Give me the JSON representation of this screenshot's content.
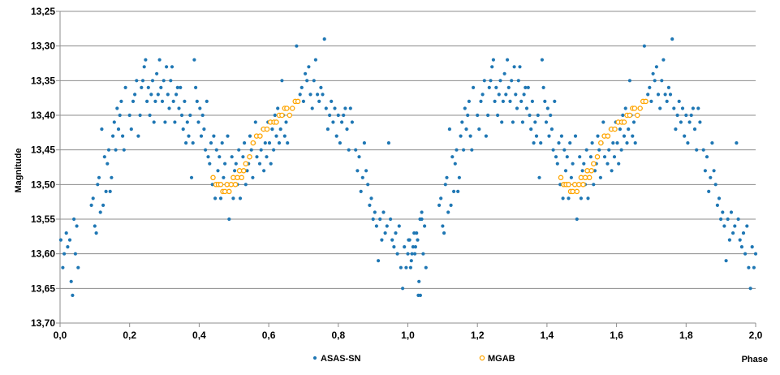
{
  "chart_data": {
    "type": "scatter",
    "xlabel": "Phase",
    "ylabel": "Magnitude",
    "xlim": [
      0,
      2
    ],
    "ylim": [
      13.25,
      13.7
    ],
    "y_inverted": true,
    "grid": "horizontal",
    "legend_position": "bottom",
    "x_ticks": [
      "0,0",
      "0,2",
      "0,4",
      "0,6",
      "0,8",
      "1,0",
      "1,2",
      "1,4",
      "1,6",
      "1,8",
      "2,0"
    ],
    "y_ticks": [
      "13,25",
      "13,30",
      "13,35",
      "13,40",
      "13,45",
      "13,50",
      "13,55",
      "13,60",
      "13,65",
      "13,70"
    ],
    "series": [
      {
        "name": "ASAS-SN",
        "color": "#1f77b4",
        "marker": "dot",
        "points": [
          [
            0.002,
            13.58
          ],
          [
            0.008,
            13.62
          ],
          [
            0.012,
            13.6
          ],
          [
            0.018,
            13.57
          ],
          [
            0.022,
            13.59
          ],
          [
            0.028,
            13.58
          ],
          [
            0.032,
            13.64
          ],
          [
            0.036,
            13.66
          ],
          [
            0.04,
            13.55
          ],
          [
            0.044,
            13.6
          ],
          [
            0.048,
            13.56
          ],
          [
            0.052,
            13.62
          ],
          [
            0.09,
            13.53
          ],
          [
            0.095,
            13.52
          ],
          [
            0.1,
            13.56
          ],
          [
            0.104,
            13.57
          ],
          [
            0.108,
            13.5
          ],
          [
            0.112,
            13.49
          ],
          [
            0.116,
            13.54
          ],
          [
            0.12,
            13.42
          ],
          [
            0.124,
            13.53
          ],
          [
            0.128,
            13.46
          ],
          [
            0.132,
            13.51
          ],
          [
            0.136,
            13.47
          ],
          [
            0.14,
            13.45
          ],
          [
            0.144,
            13.51
          ],
          [
            0.148,
            13.49
          ],
          [
            0.152,
            13.43
          ],
          [
            0.156,
            13.41
          ],
          [
            0.16,
            13.45
          ],
          [
            0.164,
            13.39
          ],
          [
            0.168,
            13.42
          ],
          [
            0.172,
            13.4
          ],
          [
            0.176,
            13.38
          ],
          [
            0.18,
            13.43
          ],
          [
            0.184,
            13.45
          ],
          [
            0.188,
            13.36
          ],
          [
            0.2,
            13.4
          ],
          [
            0.205,
            13.42
          ],
          [
            0.21,
            13.38
          ],
          [
            0.215,
            13.37
          ],
          [
            0.22,
            13.35
          ],
          [
            0.225,
            13.43
          ],
          [
            0.23,
            13.4
          ],
          [
            0.234,
            13.36
          ],
          [
            0.238,
            13.35
          ],
          [
            0.242,
            13.33
          ],
          [
            0.246,
            13.32
          ],
          [
            0.25,
            13.38
          ],
          [
            0.254,
            13.36
          ],
          [
            0.258,
            13.4
          ],
          [
            0.262,
            13.37
          ],
          [
            0.266,
            13.35
          ],
          [
            0.27,
            13.41
          ],
          [
            0.274,
            13.38
          ],
          [
            0.278,
            13.34
          ],
          [
            0.282,
            13.37
          ],
          [
            0.286,
            13.32
          ],
          [
            0.29,
            13.36
          ],
          [
            0.294,
            13.38
          ],
          [
            0.298,
            13.35
          ],
          [
            0.302,
            13.41
          ],
          [
            0.306,
            13.33
          ],
          [
            0.31,
            13.37
          ],
          [
            0.314,
            13.39
          ],
          [
            0.318,
            13.35
          ],
          [
            0.322,
            13.33
          ],
          [
            0.326,
            13.38
          ],
          [
            0.33,
            13.41
          ],
          [
            0.334,
            13.37
          ],
          [
            0.338,
            13.36
          ],
          [
            0.342,
            13.39
          ],
          [
            0.346,
            13.36
          ],
          [
            0.35,
            13.4
          ],
          [
            0.354,
            13.42
          ],
          [
            0.358,
            13.38
          ],
          [
            0.362,
            13.44
          ],
          [
            0.366,
            13.41
          ],
          [
            0.37,
            13.43
          ],
          [
            0.374,
            13.4
          ],
          [
            0.378,
            13.49
          ],
          [
            0.382,
            13.44
          ],
          [
            0.386,
            13.32
          ],
          [
            0.39,
            13.36
          ],
          [
            0.394,
            13.38
          ],
          [
            0.398,
            13.41
          ],
          [
            0.402,
            13.39
          ],
          [
            0.406,
            13.43
          ],
          [
            0.41,
            13.4
          ],
          [
            0.414,
            13.42
          ],
          [
            0.418,
            13.45
          ],
          [
            0.422,
            13.38
          ],
          [
            0.426,
            13.46
          ],
          [
            0.43,
            13.47
          ],
          [
            0.434,
            13.44
          ],
          [
            0.438,
            13.5
          ],
          [
            0.442,
            13.43
          ],
          [
            0.446,
            13.52
          ],
          [
            0.45,
            13.45
          ],
          [
            0.454,
            13.48
          ],
          [
            0.458,
            13.46
          ],
          [
            0.462,
            13.52
          ],
          [
            0.466,
            13.44
          ],
          [
            0.47,
            13.49
          ],
          [
            0.474,
            13.47
          ],
          [
            0.478,
            13.51
          ],
          [
            0.482,
            13.43
          ],
          [
            0.486,
            13.55
          ],
          [
            0.49,
            13.5
          ],
          [
            0.494,
            13.46
          ],
          [
            0.498,
            13.52
          ],
          [
            0.502,
            13.48
          ],
          [
            0.506,
            13.47
          ],
          [
            0.51,
            13.5
          ],
          [
            0.514,
            13.45
          ],
          [
            0.518,
            13.52
          ],
          [
            0.522,
            13.49
          ],
          [
            0.526,
            13.46
          ],
          [
            0.53,
            13.44
          ],
          [
            0.534,
            13.5
          ],
          [
            0.538,
            13.48
          ],
          [
            0.542,
            13.47
          ],
          [
            0.546,
            13.43
          ],
          [
            0.55,
            13.45
          ],
          [
            0.554,
            13.49
          ],
          [
            0.558,
            13.44
          ],
          [
            0.562,
            13.41
          ],
          [
            0.566,
            13.46
          ],
          [
            0.57,
            13.43
          ],
          [
            0.574,
            13.47
          ],
          [
            0.578,
            13.45
          ],
          [
            0.582,
            13.42
          ],
          [
            0.586,
            13.48
          ],
          [
            0.59,
            13.44
          ],
          [
            0.594,
            13.46
          ],
          [
            0.598,
            13.41
          ],
          [
            0.602,
            13.44
          ],
          [
            0.606,
            13.47
          ],
          [
            0.61,
            13.42
          ],
          [
            0.614,
            13.45
          ],
          [
            0.618,
            13.4
          ],
          [
            0.622,
            13.43
          ],
          [
            0.626,
            13.39
          ],
          [
            0.63,
            13.44
          ],
          [
            0.634,
            13.42
          ],
          [
            0.638,
            13.35
          ],
          [
            0.642,
            13.4
          ],
          [
            0.646,
            13.43
          ],
          [
            0.65,
            13.41
          ],
          [
            0.654,
            13.44
          ],
          [
            0.68,
            13.3
          ],
          [
            0.69,
            13.37
          ],
          [
            0.695,
            13.36
          ],
          [
            0.7,
            13.38
          ],
          [
            0.705,
            13.34
          ],
          [
            0.71,
            13.35
          ],
          [
            0.715,
            13.33
          ],
          [
            0.72,
            13.37
          ],
          [
            0.725,
            13.39
          ],
          [
            0.73,
            13.35
          ],
          [
            0.735,
            13.32
          ],
          [
            0.74,
            13.37
          ],
          [
            0.745,
            13.38
          ],
          [
            0.75,
            13.36
          ],
          [
            0.755,
            13.37
          ],
          [
            0.76,
            13.29
          ],
          [
            0.765,
            13.39
          ],
          [
            0.77,
            13.42
          ],
          [
            0.775,
            13.4
          ],
          [
            0.78,
            13.38
          ],
          [
            0.785,
            13.41
          ],
          [
            0.79,
            13.39
          ],
          [
            0.795,
            13.43
          ],
          [
            0.8,
            13.4
          ],
          [
            0.805,
            13.44
          ],
          [
            0.81,
            13.41
          ],
          [
            0.815,
            13.4
          ],
          [
            0.82,
            13.39
          ],
          [
            0.825,
            13.42
          ],
          [
            0.83,
            13.45
          ],
          [
            0.835,
            13.39
          ],
          [
            0.84,
            13.41
          ],
          [
            0.85,
            13.45
          ],
          [
            0.855,
            13.48
          ],
          [
            0.86,
            13.46
          ],
          [
            0.865,
            13.51
          ],
          [
            0.87,
            13.49
          ],
          [
            0.875,
            13.44
          ],
          [
            0.88,
            13.48
          ],
          [
            0.885,
            13.5
          ],
          [
            0.89,
            13.53
          ],
          [
            0.895,
            13.52
          ],
          [
            0.9,
            13.55
          ],
          [
            0.905,
            13.54
          ],
          [
            0.91,
            13.56
          ],
          [
            0.915,
            13.61
          ],
          [
            0.92,
            13.55
          ],
          [
            0.925,
            13.58
          ],
          [
            0.93,
            13.54
          ],
          [
            0.935,
            13.57
          ],
          [
            0.94,
            13.56
          ],
          [
            0.945,
            13.44
          ],
          [
            0.95,
            13.55
          ],
          [
            0.955,
            13.58
          ],
          [
            0.96,
            13.59
          ],
          [
            0.965,
            13.57
          ],
          [
            0.97,
            13.6
          ],
          [
            0.975,
            13.56
          ],
          [
            0.98,
            13.62
          ],
          [
            0.985,
            13.65
          ],
          [
            0.99,
            13.59
          ],
          [
            0.995,
            13.62
          ],
          [
            1.0,
            13.6
          ],
          [
            1.005,
            13.58
          ],
          [
            1.01,
            13.61
          ],
          [
            1.015,
            13.59
          ],
          [
            1.02,
            13.6
          ],
          [
            1.025,
            13.57
          ],
          [
            1.03,
            13.66
          ],
          [
            1.035,
            13.55
          ],
          [
            1.04,
            13.54
          ]
        ]
      },
      {
        "name": "MGAB",
        "color": "#ffa500",
        "marker": "open-circle",
        "points": [
          [
            0.44,
            13.49
          ],
          [
            0.448,
            13.5
          ],
          [
            0.455,
            13.5
          ],
          [
            0.462,
            13.5
          ],
          [
            0.468,
            13.51
          ],
          [
            0.474,
            13.51
          ],
          [
            0.48,
            13.5
          ],
          [
            0.486,
            13.51
          ],
          [
            0.492,
            13.5
          ],
          [
            0.498,
            13.49
          ],
          [
            0.504,
            13.5
          ],
          [
            0.51,
            13.49
          ],
          [
            0.516,
            13.48
          ],
          [
            0.522,
            13.49
          ],
          [
            0.528,
            13.48
          ],
          [
            0.534,
            13.47
          ],
          [
            0.545,
            13.46
          ],
          [
            0.555,
            13.44
          ],
          [
            0.565,
            13.43
          ],
          [
            0.575,
            13.43
          ],
          [
            0.585,
            13.42
          ],
          [
            0.595,
            13.42
          ],
          [
            0.605,
            13.41
          ],
          [
            0.615,
            13.41
          ],
          [
            0.622,
            13.41
          ],
          [
            0.63,
            13.4
          ],
          [
            0.638,
            13.4
          ],
          [
            0.646,
            13.39
          ],
          [
            0.652,
            13.39
          ],
          [
            0.66,
            13.4
          ],
          [
            0.668,
            13.39
          ],
          [
            0.676,
            13.38
          ],
          [
            0.684,
            13.38
          ]
        ]
      }
    ]
  }
}
